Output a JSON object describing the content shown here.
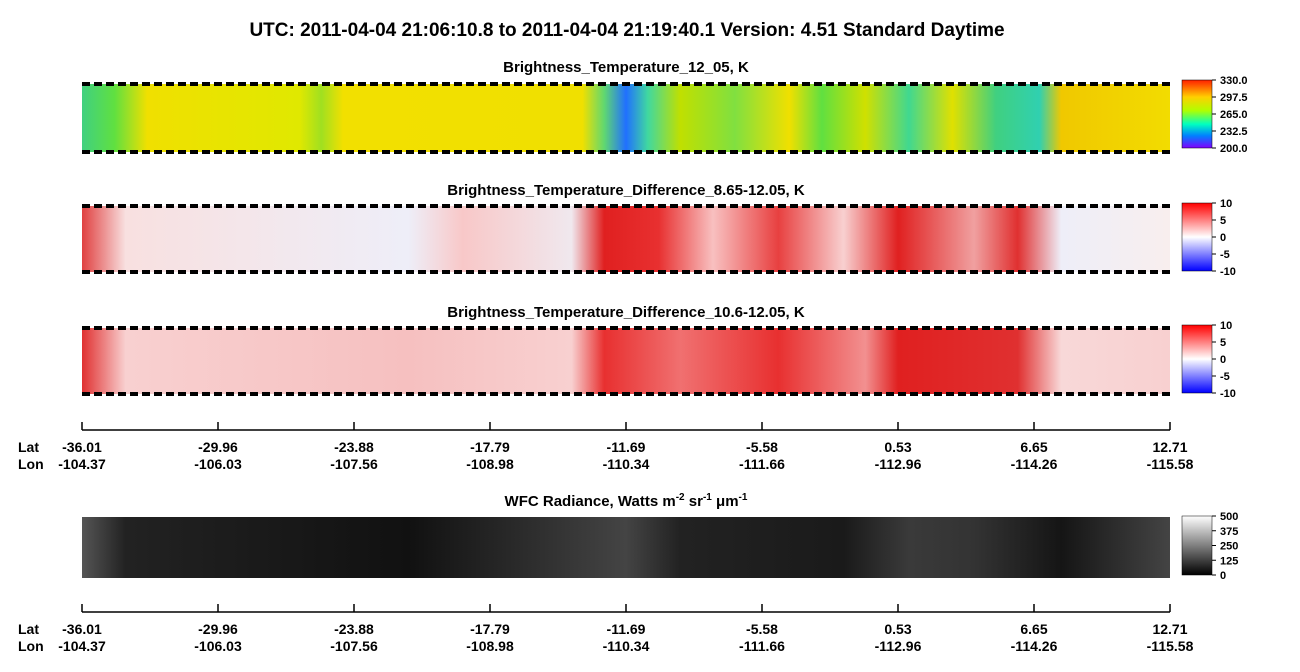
{
  "header": {
    "title": "UTC:  2011-04-04   21:06:10.8  to  2011-04-04   21:19:40.1    Version: 4.51  Standard Daytime"
  },
  "panels": [
    {
      "title": [
        "Brightness_Temperature_12_05, K"
      ],
      "colorbar": [
        "330.0",
        "297.5",
        "265.0",
        "232.5",
        "200.0"
      ]
    },
    {
      "title": [
        "Brightness_Temperature_Difference_8.65-12.05, K"
      ],
      "colorbar": [
        "10",
        "5",
        "0",
        "-5",
        "-10"
      ]
    },
    {
      "title": [
        "Brightness_Temperature_Difference_10.6-12.05, K"
      ],
      "colorbar": [
        "10",
        "5",
        "0",
        "-5",
        "-10"
      ]
    },
    {
      "title": [
        "WFC Radiance, Watts m",
        "-2",
        " sr",
        "-1",
        " μm",
        "-1"
      ],
      "colorbar": [
        "500",
        "375",
        "250",
        "125",
        "0"
      ]
    }
  ],
  "axes": [
    {
      "lat_label": "Lat",
      "lon_label": "Lon",
      "lat": [
        "-36.01",
        "-29.96",
        "-23.88",
        "-17.79",
        "-11.69",
        "-5.58",
        "0.53",
        "6.65",
        "12.71"
      ],
      "lon": [
        "-104.37",
        "-106.03",
        "-107.56",
        "-108.98",
        "-110.34",
        "-111.66",
        "-112.96",
        "-114.26",
        "-115.58"
      ]
    },
    {
      "lat_label": "Lat",
      "lon_label": "Lon",
      "lat": [
        "-36.01",
        "-29.96",
        "-23.88",
        "-17.79",
        "-11.69",
        "-5.58",
        "0.53",
        "6.65",
        "12.71"
      ],
      "lon": [
        "-104.37",
        "-106.03",
        "-107.56",
        "-108.98",
        "-110.34",
        "-111.66",
        "-112.96",
        "-114.26",
        "-115.58"
      ]
    }
  ]
}
